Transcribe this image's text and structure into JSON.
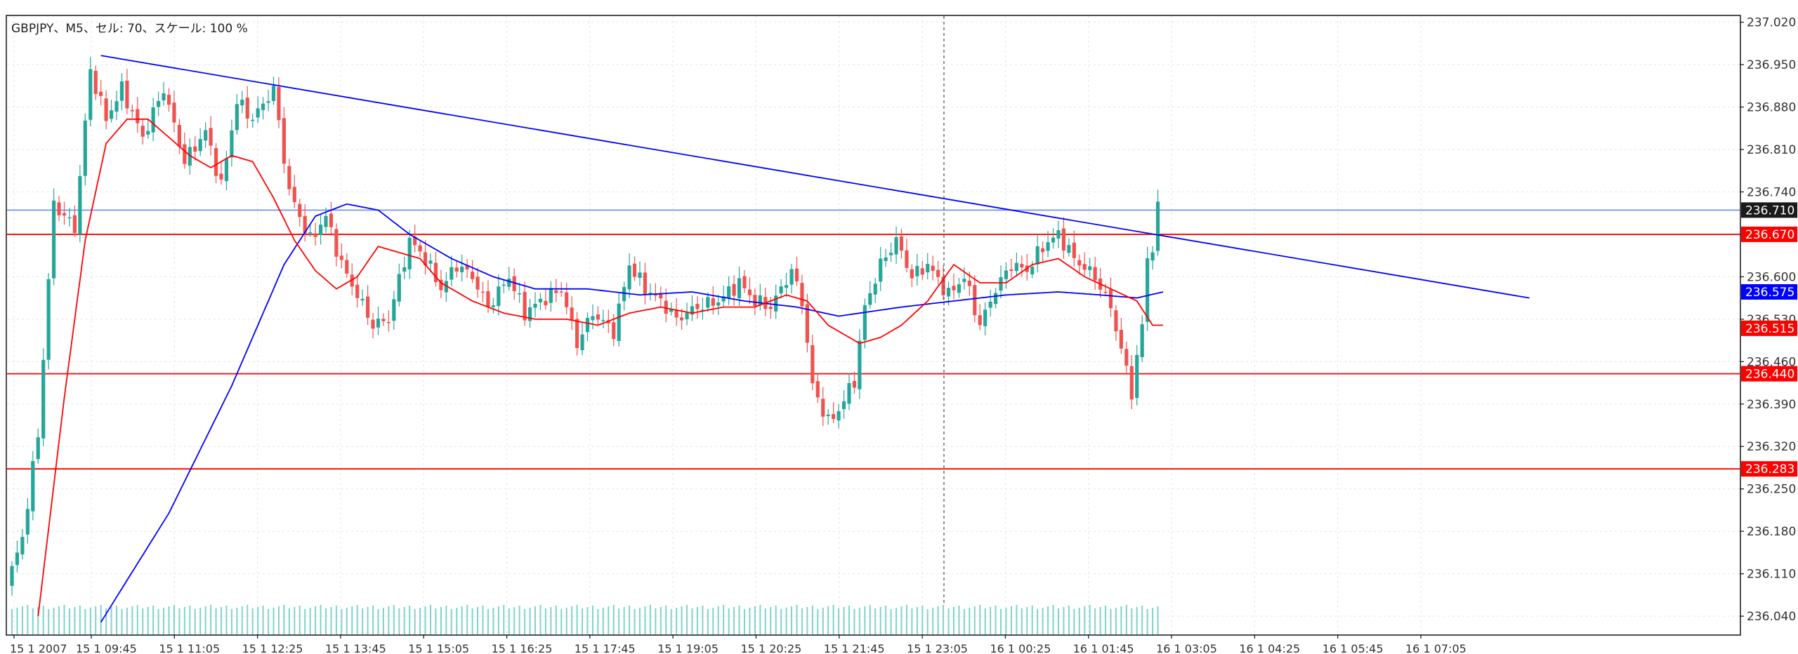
{
  "header": {
    "info": "GBPJPY、M5、セル: 70、スケール: 100 %"
  },
  "colors": {
    "background": "#ffffff",
    "grid": "#dfe5ec",
    "bull": "#26a69a",
    "bear": "#ef5350",
    "ma_fast": "#ff0000",
    "ma_slow": "#0000ff",
    "trendline": "#0000ff",
    "hline": "#ff0000",
    "ask_line": "#6b8cf5",
    "volume": "#7fd2cf",
    "text": "#333333"
  },
  "chart_data": {
    "type": "candlestick",
    "symbol": "GBPJPY",
    "timeframe": "M5",
    "ylim": [
      236.01,
      237.03
    ],
    "y_ticks": [
      "237.020",
      "236.950",
      "236.880",
      "236.810",
      "236.740",
      "236.670",
      "236.600",
      "236.530",
      "236.460",
      "236.390",
      "236.320",
      "236.250",
      "236.180",
      "236.110",
      "236.040"
    ],
    "x_ticks": [
      "15 1 2007",
      "15 1 09:45",
      "15 1 11:05",
      "15 1 12:25",
      "15 1 13:45",
      "15 1 15:05",
      "15 1 16:25",
      "15 1 17:45",
      "15 1 19:05",
      "15 1 20:25",
      "15 1 21:45",
      "15 1 23:05",
      "16 1 00:25",
      "16 1 01:45",
      "16 1 03:05",
      "16 1 04:25",
      "16 1 05:45",
      "16 1 07:05"
    ],
    "candle_count": 220,
    "anchors": [
      [
        0,
        236.09
      ],
      [
        3,
        236.17
      ],
      [
        6,
        236.34
      ],
      [
        9,
        236.72
      ],
      [
        13,
        236.68
      ],
      [
        16,
        236.94
      ],
      [
        19,
        236.86
      ],
      [
        22,
        236.91
      ],
      [
        26,
        236.83
      ],
      [
        30,
        236.91
      ],
      [
        34,
        236.79
      ],
      [
        38,
        236.84
      ],
      [
        41,
        236.75
      ],
      [
        44,
        236.89
      ],
      [
        47,
        236.86
      ],
      [
        51,
        236.91
      ],
      [
        54,
        236.74
      ],
      [
        58,
        236.66
      ],
      [
        61,
        236.7
      ],
      [
        64,
        236.62
      ],
      [
        67,
        236.57
      ],
      [
        70,
        236.52
      ],
      [
        73,
        236.53
      ],
      [
        77,
        236.66
      ],
      [
        80,
        236.63
      ],
      [
        83,
        236.58
      ],
      [
        86,
        236.62
      ],
      [
        89,
        236.6
      ],
      [
        92,
        236.55
      ],
      [
        96,
        236.6
      ],
      [
        99,
        236.54
      ],
      [
        102,
        236.56
      ],
      [
        106,
        236.58
      ],
      [
        109,
        236.49
      ],
      [
        112,
        236.54
      ],
      [
        116,
        236.51
      ],
      [
        119,
        236.62
      ],
      [
        122,
        236.58
      ],
      [
        125,
        236.56
      ],
      [
        128,
        236.53
      ],
      [
        132,
        236.55
      ],
      [
        136,
        236.56
      ],
      [
        140,
        236.59
      ],
      [
        143,
        236.56
      ],
      [
        146,
        236.55
      ],
      [
        150,
        236.61
      ],
      [
        152,
        236.56
      ],
      [
        154,
        236.42
      ],
      [
        157,
        236.36
      ],
      [
        159,
        236.38
      ],
      [
        162,
        236.43
      ],
      [
        164,
        236.55
      ],
      [
        167,
        236.62
      ],
      [
        170,
        236.66
      ],
      [
        173,
        236.6
      ],
      [
        176,
        236.62
      ],
      [
        180,
        236.57
      ],
      [
        183,
        236.6
      ],
      [
        186,
        236.52
      ],
      [
        189,
        236.58
      ],
      [
        192,
        236.62
      ],
      [
        195,
        236.61
      ],
      [
        198,
        236.65
      ],
      [
        201,
        236.67
      ],
      [
        204,
        236.63
      ],
      [
        208,
        236.6
      ],
      [
        211,
        236.55
      ],
      [
        213,
        236.48
      ],
      [
        215,
        236.41
      ],
      [
        217,
        236.52
      ],
      [
        218,
        236.63
      ],
      [
        219,
        236.65
      ],
      [
        220,
        236.71
      ]
    ],
    "ma_fast_anchors": [
      [
        5,
        236.04
      ],
      [
        10,
        236.4
      ],
      [
        14,
        236.66
      ],
      [
        18,
        236.82
      ],
      [
        22,
        236.86
      ],
      [
        26,
        236.86
      ],
      [
        30,
        236.83
      ],
      [
        34,
        236.8
      ],
      [
        38,
        236.78
      ],
      [
        42,
        236.8
      ],
      [
        46,
        236.79
      ],
      [
        50,
        236.73
      ],
      [
        54,
        236.66
      ],
      [
        58,
        236.61
      ],
      [
        62,
        236.58
      ],
      [
        66,
        236.6
      ],
      [
        70,
        236.65
      ],
      [
        74,
        236.64
      ],
      [
        78,
        236.63
      ],
      [
        82,
        236.59
      ],
      [
        88,
        236.56
      ],
      [
        94,
        236.54
      ],
      [
        100,
        236.53
      ],
      [
        106,
        236.53
      ],
      [
        112,
        236.52
      ],
      [
        118,
        236.54
      ],
      [
        124,
        236.55
      ],
      [
        130,
        236.54
      ],
      [
        136,
        236.55
      ],
      [
        142,
        236.55
      ],
      [
        148,
        236.57
      ],
      [
        152,
        236.56
      ],
      [
        156,
        236.52
      ],
      [
        162,
        236.49
      ],
      [
        166,
        236.5
      ],
      [
        170,
        236.52
      ],
      [
        175,
        236.56
      ],
      [
        180,
        236.62
      ],
      [
        185,
        236.59
      ],
      [
        190,
        236.59
      ],
      [
        195,
        236.62
      ],
      [
        200,
        236.63
      ],
      [
        205,
        236.6
      ],
      [
        210,
        236.58
      ],
      [
        215,
        236.56
      ],
      [
        218,
        236.52
      ],
      [
        220,
        236.52
      ]
    ],
    "ma_slow_anchors": [
      [
        17,
        236.03
      ],
      [
        30,
        236.21
      ],
      [
        42,
        236.42
      ],
      [
        52,
        236.62
      ],
      [
        58,
        236.7
      ],
      [
        64,
        236.72
      ],
      [
        70,
        236.71
      ],
      [
        76,
        236.67
      ],
      [
        84,
        236.63
      ],
      [
        92,
        236.6
      ],
      [
        100,
        236.58
      ],
      [
        110,
        236.58
      ],
      [
        120,
        236.57
      ],
      [
        130,
        236.575
      ],
      [
        140,
        236.56
      ],
      [
        150,
        236.55
      ],
      [
        158,
        236.535
      ],
      [
        170,
        236.55
      ],
      [
        180,
        236.56
      ],
      [
        190,
        236.57
      ],
      [
        200,
        236.575
      ],
      [
        208,
        236.57
      ],
      [
        215,
        236.565
      ],
      [
        220,
        236.575
      ]
    ],
    "trendline": {
      "from": [
        17,
        236.965
      ],
      "to": [
        290,
        236.565
      ]
    },
    "horizontal_lines": [
      "236.670",
      "236.440",
      "236.283"
    ],
    "price_labels": [
      {
        "value": "236.710",
        "price": 236.71,
        "bg": "#1a1a1a"
      },
      {
        "value": "236.670",
        "price": 236.67,
        "bg": "#ff0000"
      },
      {
        "value": "236.575",
        "price": 236.575,
        "bg": "#0000ff"
      },
      {
        "value": "236.515",
        "price": 236.515,
        "bg": "#ff0000"
      },
      {
        "value": "236.440",
        "price": 236.44,
        "bg": "#ff0000"
      },
      {
        "value": "236.283",
        "price": 236.283,
        "bg": "#ff0000"
      }
    ],
    "current_ask": 236.71
  }
}
